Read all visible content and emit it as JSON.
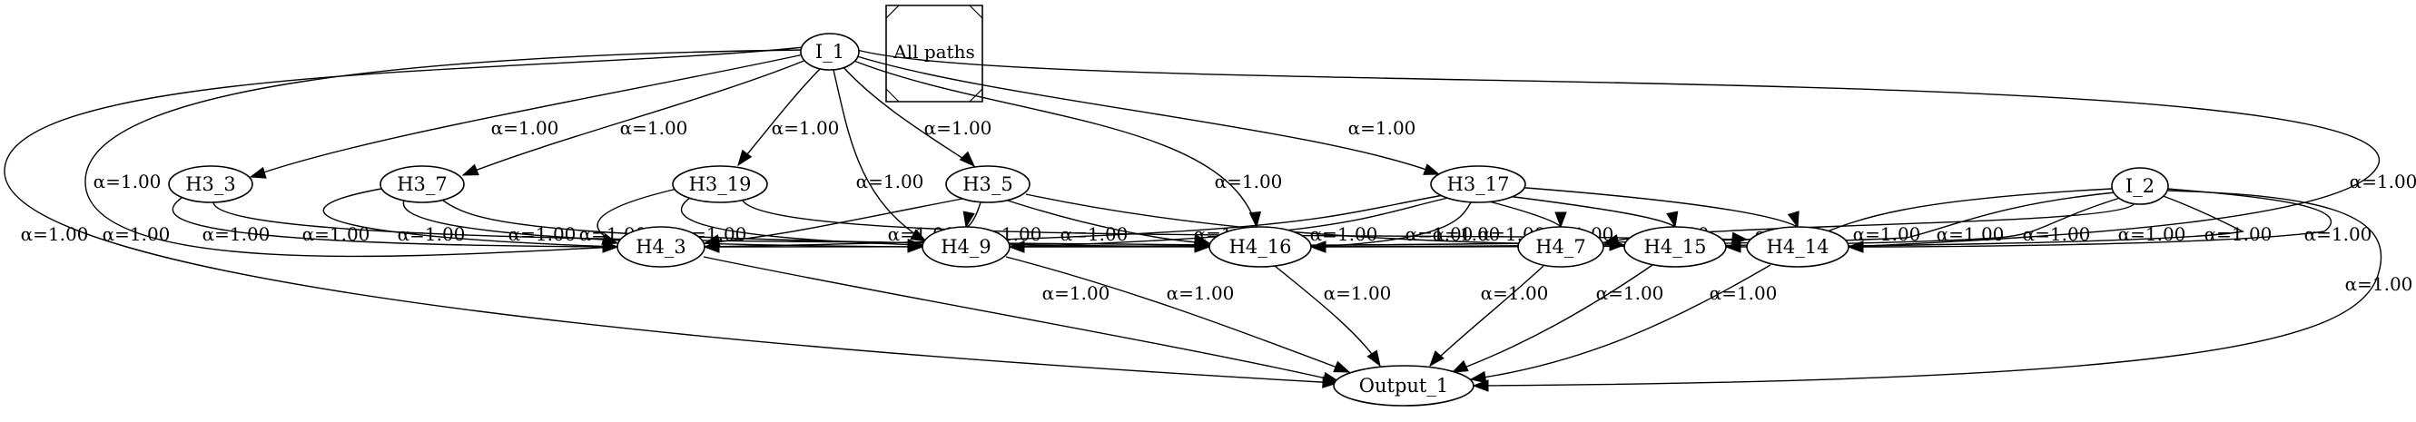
{
  "legend": {
    "label": "All paths"
  },
  "nodes": [
    {
      "id": "I_1",
      "label": "I_1"
    },
    {
      "id": "I_2",
      "label": "I_2"
    },
    {
      "id": "H3_3",
      "label": "H3_3"
    },
    {
      "id": "H3_7",
      "label": "H3_7"
    },
    {
      "id": "H3_19",
      "label": "H3_19"
    },
    {
      "id": "H3_5",
      "label": "H3_5"
    },
    {
      "id": "H3_17",
      "label": "H3_17"
    },
    {
      "id": "H4_3",
      "label": "H4_3"
    },
    {
      "id": "H4_9",
      "label": "H4_9"
    },
    {
      "id": "H4_16",
      "label": "H4_16"
    },
    {
      "id": "H4_7",
      "label": "H4_7"
    },
    {
      "id": "H4_15",
      "label": "H4_15"
    },
    {
      "id": "H4_14",
      "label": "H4_14"
    },
    {
      "id": "Output_1",
      "label": "Output_1"
    }
  ],
  "edges": [
    {
      "from": "I_1",
      "to": "Output_1",
      "label": "α=1.00"
    },
    {
      "from": "I_1",
      "to": "H4_3",
      "label": "α=1.00"
    },
    {
      "from": "I_1",
      "to": "H3_3",
      "label": "α=1.00"
    },
    {
      "from": "I_1",
      "to": "H3_7",
      "label": "α=1.00"
    },
    {
      "from": "I_1",
      "to": "H3_19",
      "label": "α=1.00"
    },
    {
      "from": "I_1",
      "to": "H4_9",
      "label": "α=1.00"
    },
    {
      "from": "I_1",
      "to": "H3_5",
      "label": "α=1.00"
    },
    {
      "from": "I_1",
      "to": "H4_16",
      "label": "α=1.00"
    },
    {
      "from": "I_1",
      "to": "H3_17",
      "label": "α=1.00"
    },
    {
      "from": "I_1",
      "to": "H4_14",
      "label": "α=1.00"
    },
    {
      "from": "H3_3",
      "to": "H4_3",
      "label": "α=1.00"
    },
    {
      "from": "H3_3",
      "to": "H4_16",
      "label": "α=1.00"
    },
    {
      "from": "H3_7",
      "to": "H4_3",
      "label": "α=1.00"
    },
    {
      "from": "H3_7",
      "to": "H4_9",
      "label": "α=1.00"
    },
    {
      "from": "H3_7",
      "to": "H4_16",
      "label": "α=1.00"
    },
    {
      "from": "H3_19",
      "to": "H4_3",
      "label": "α=1.00"
    },
    {
      "from": "H3_19",
      "to": "H4_9",
      "label": "α=1.00"
    },
    {
      "from": "H3_19",
      "to": "H4_14",
      "label": "α=1.00"
    },
    {
      "from": "H3_5",
      "to": "H4_3",
      "label": "α=1.00"
    },
    {
      "from": "H3_5",
      "to": "H4_9",
      "label": "α=1.00"
    },
    {
      "from": "H3_5",
      "to": "H4_16",
      "label": "α=1.00"
    },
    {
      "from": "H3_5",
      "to": "H4_15",
      "label": "α=1.00"
    },
    {
      "from": "H3_17",
      "to": "H4_3",
      "label": "α=1.00"
    },
    {
      "from": "H3_17",
      "to": "H4_9",
      "label": "α=1.00"
    },
    {
      "from": "H3_17",
      "to": "H4_16",
      "label": "α=1.00"
    },
    {
      "from": "H3_17",
      "to": "H4_7",
      "label": "α=1.00"
    },
    {
      "from": "H3_17",
      "to": "H4_15",
      "label": "α=1.00"
    },
    {
      "from": "H3_17",
      "to": "H4_14",
      "label": "α=1.00"
    },
    {
      "from": "I_2",
      "to": "H4_3",
      "label": "α=1.00"
    },
    {
      "from": "I_2",
      "to": "H4_9",
      "label": "α=1.00"
    },
    {
      "from": "I_2",
      "to": "H4_16",
      "label": "α=1.00"
    },
    {
      "from": "I_2",
      "to": "H4_7",
      "label": "α=1.00"
    },
    {
      "from": "I_2",
      "to": "H4_15",
      "label": "α=1.00"
    },
    {
      "from": "I_2",
      "to": "H4_14",
      "label": "α=1.00"
    },
    {
      "from": "I_2",
      "to": "Output_1",
      "label": "α=1.00"
    },
    {
      "from": "H4_3",
      "to": "Output_1",
      "label": "α=1.00"
    },
    {
      "from": "H4_9",
      "to": "Output_1",
      "label": "α=1.00"
    },
    {
      "from": "H4_16",
      "to": "Output_1",
      "label": "α=1.00"
    },
    {
      "from": "H4_7",
      "to": "Output_1",
      "label": "α=1.00"
    },
    {
      "from": "H4_15",
      "to": "Output_1",
      "label": "α=1.00"
    },
    {
      "from": "H4_14",
      "to": "Output_1",
      "label": "α=1.00"
    }
  ]
}
